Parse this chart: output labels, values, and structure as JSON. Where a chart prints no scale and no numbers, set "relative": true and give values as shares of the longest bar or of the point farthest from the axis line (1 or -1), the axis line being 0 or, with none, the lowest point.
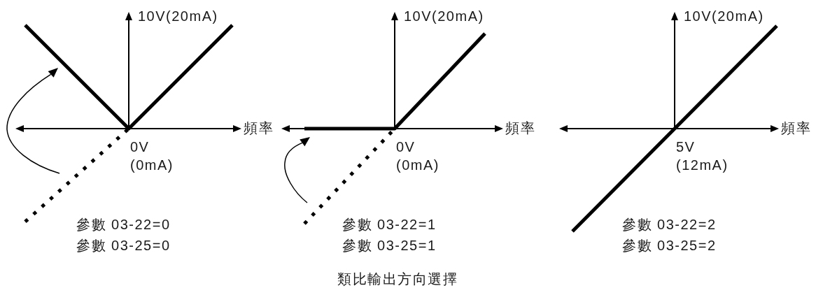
{
  "chart_data": [
    {
      "type": "line",
      "relative": true,
      "categories": [
        null,
        null,
        null
      ],
      "series": [
        {
          "color": "#000000",
          "values": [
            1,
            0,
            1
          ]
        },
        {
          "color": "#000000",
          "values": [
            -0.9,
            0,
            null
          ],
          "line_style": "dotted"
        }
      ],
      "xlabel": "頻率",
      "ylabel": "10V(20mA)",
      "marker": "none",
      "annotations": [
        "0V\n(0mA)",
        "參數 03-22=0",
        "參數 03-25=0"
      ]
    },
    {
      "type": "line",
      "relative": true,
      "categories": [
        null,
        null,
        null
      ],
      "series": [
        {
          "color": "#000000",
          "values": [
            0,
            0,
            1
          ]
        },
        {
          "color": "#000000",
          "values": [
            -1,
            0,
            null
          ],
          "line_style": "dotted"
        }
      ],
      "xlabel": "頻率",
      "ylabel": "10V(20mA)",
      "marker": "none",
      "annotations": [
        "0V\n(0mA)",
        "參數 03-22=1",
        "參數 03-25=1"
      ],
      "title": "類比輸出方向選擇"
    },
    {
      "type": "line",
      "relative": true,
      "categories": [
        null,
        null,
        null
      ],
      "series": [
        {
          "color": "#000000",
          "values": [
            -1,
            0,
            1
          ]
        }
      ],
      "xlabel": "頻率",
      "ylabel": "10V(20mA)",
      "marker": "none",
      "annotations": [
        "5V\n(12mA)",
        "參數 03-22=2",
        "參數 03-25=2"
      ]
    }
  ]
}
